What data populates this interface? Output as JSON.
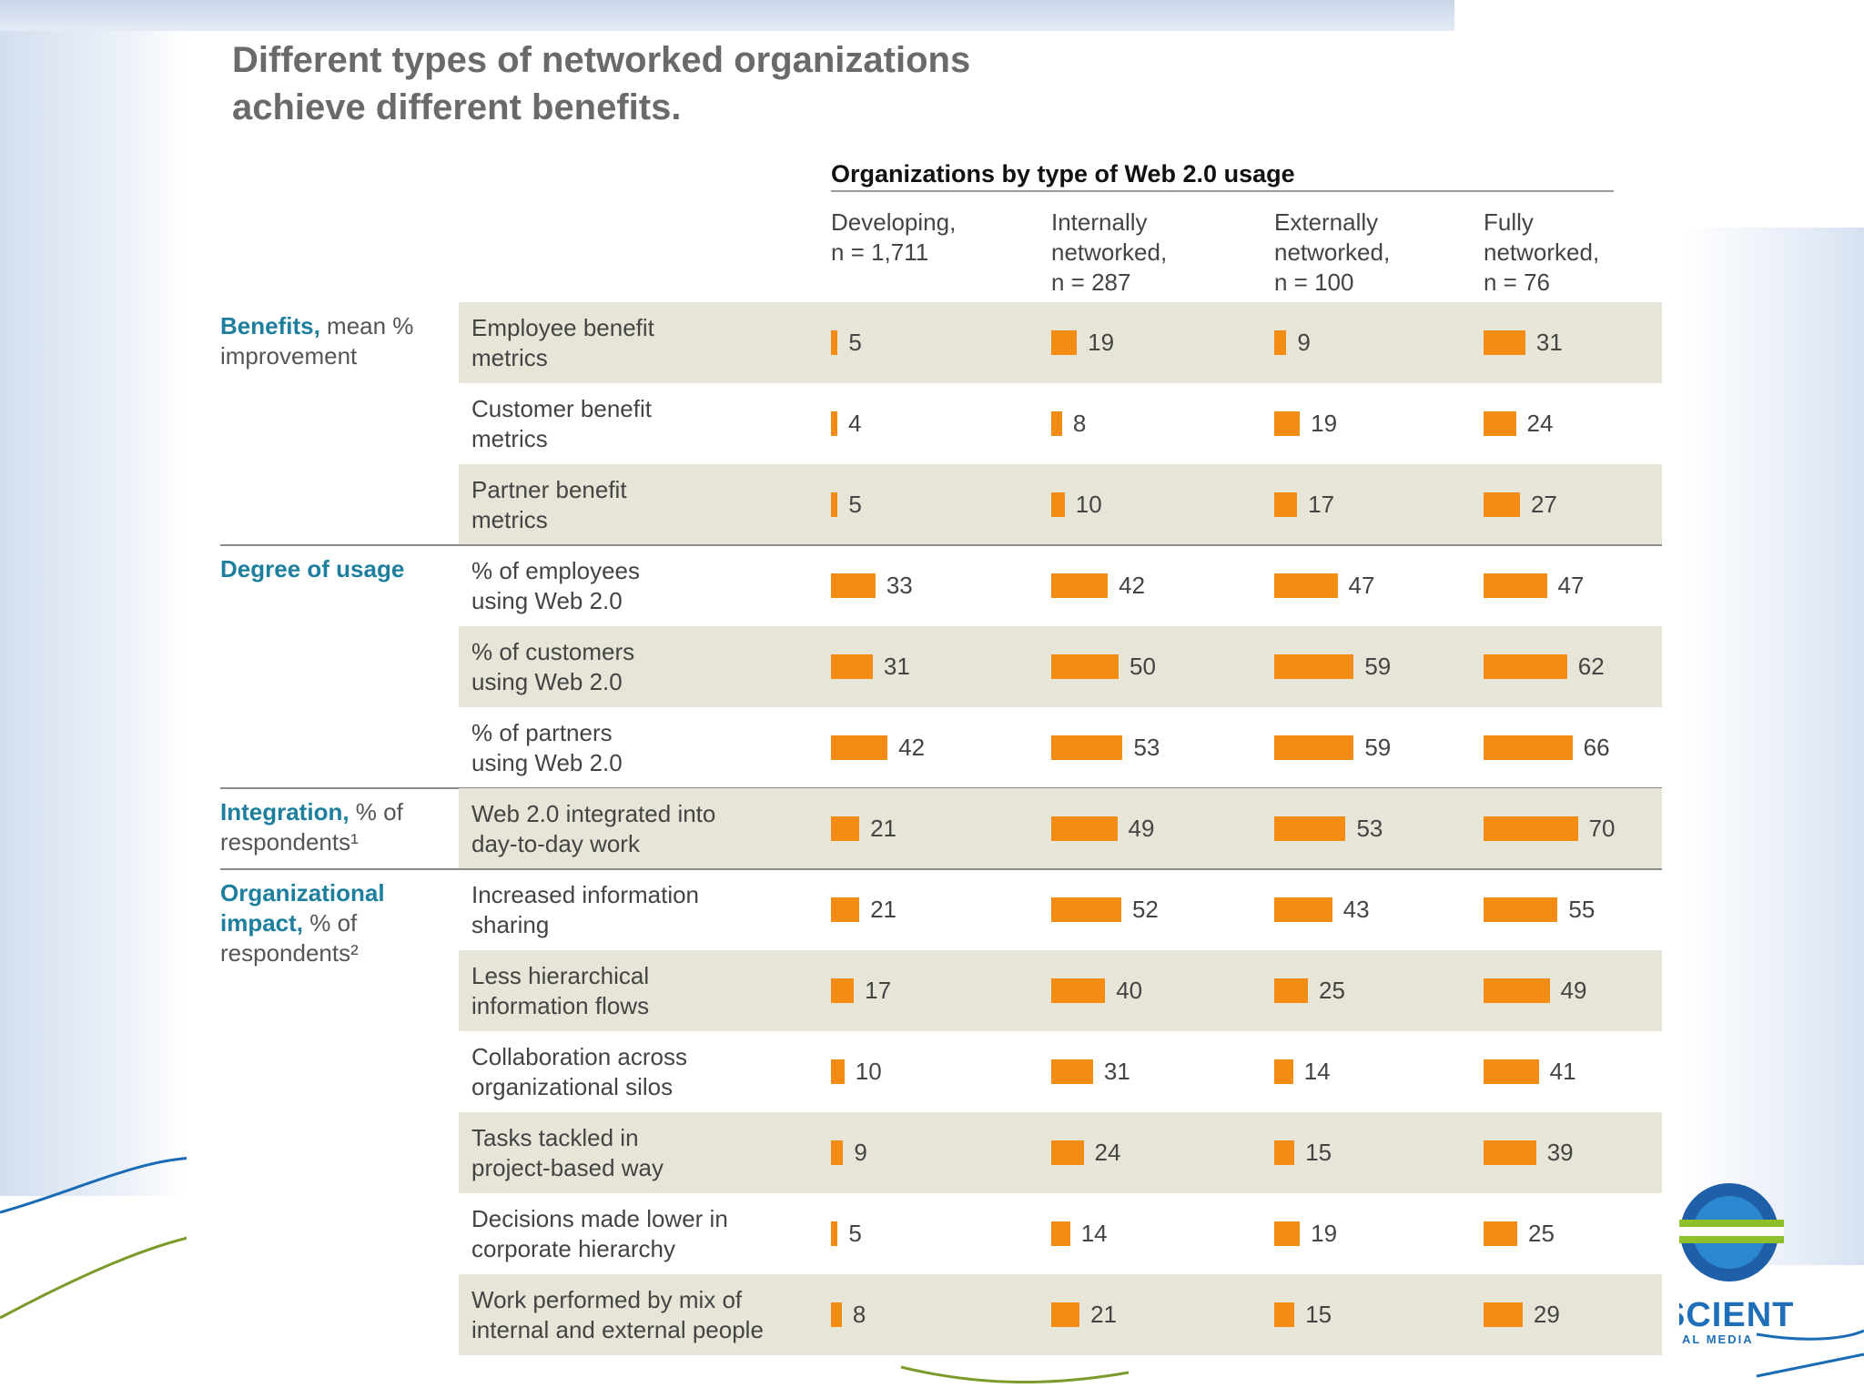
{
  "title": {
    "line1": "Different types of networked organizations",
    "line2": "achieve different benefits."
  },
  "chart_data": {
    "type": "table",
    "group_header": "Organizations by type of Web 2.0 usage",
    "columns": [
      {
        "lines": [
          "Developing,",
          "n = 1,711"
        ]
      },
      {
        "lines": [
          "Internally",
          "networked,",
          "n = 287"
        ]
      },
      {
        "lines": [
          "Externally",
          "networked,",
          "n = 100"
        ]
      },
      {
        "lines": [
          "Fully",
          "networked,",
          "n = 76"
        ]
      }
    ],
    "sections": [
      {
        "label_bold": "Benefits,",
        "label_rest": " mean % improvement",
        "rows": [
          {
            "label": [
              "Employee benefit",
              "metrics"
            ],
            "values": [
              5,
              19,
              9,
              31
            ]
          },
          {
            "label": [
              "Customer benefit",
              "metrics"
            ],
            "values": [
              4,
              8,
              19,
              24
            ]
          },
          {
            "label": [
              "Partner benefit",
              "metrics"
            ],
            "values": [
              5,
              10,
              17,
              27
            ]
          }
        ]
      },
      {
        "label_bold": "Degree of usage",
        "label_rest": "",
        "rows": [
          {
            "label": [
              "% of employees",
              "using Web 2.0"
            ],
            "values": [
              33,
              42,
              47,
              47
            ]
          },
          {
            "label": [
              "% of customers",
              "using Web 2.0"
            ],
            "values": [
              31,
              50,
              59,
              62
            ]
          },
          {
            "label": [
              "% of partners",
              "using Web 2.0"
            ],
            "values": [
              42,
              53,
              59,
              66
            ]
          }
        ]
      },
      {
        "label_bold": "Integration,",
        "label_rest": " % of respondents¹",
        "rows": [
          {
            "label": [
              "Web 2.0 integrated into",
              "day-to-day work"
            ],
            "values": [
              21,
              49,
              53,
              70
            ]
          }
        ]
      },
      {
        "label_bold": "Organizational impact,",
        "label_rest": " % of respondents²",
        "rows": [
          {
            "label": [
              "Increased information",
              "sharing"
            ],
            "values": [
              21,
              52,
              43,
              55
            ]
          },
          {
            "label": [
              "Less hierarchical",
              "information flows"
            ],
            "values": [
              17,
              40,
              25,
              49
            ]
          },
          {
            "label": [
              "Collaboration across",
              "organizational silos"
            ],
            "values": [
              10,
              31,
              14,
              41
            ]
          },
          {
            "label": [
              "Tasks tackled in",
              "project-based way"
            ],
            "values": [
              9,
              24,
              15,
              39
            ]
          },
          {
            "label": [
              "Decisions made lower in",
              "corporate hierarchy"
            ],
            "values": [
              5,
              14,
              19,
              25
            ]
          },
          {
            "label": [
              "Work performed by mix of",
              "internal and external people"
            ],
            "values": [
              8,
              21,
              15,
              29
            ]
          }
        ]
      }
    ],
    "bar_color": "#f28c12",
    "shade_color": "#e7e5d7",
    "accent_color": "#1d7f9d"
  },
  "logo": {
    "text": "SCIENT",
    "subtext": "AL MEDIA"
  }
}
